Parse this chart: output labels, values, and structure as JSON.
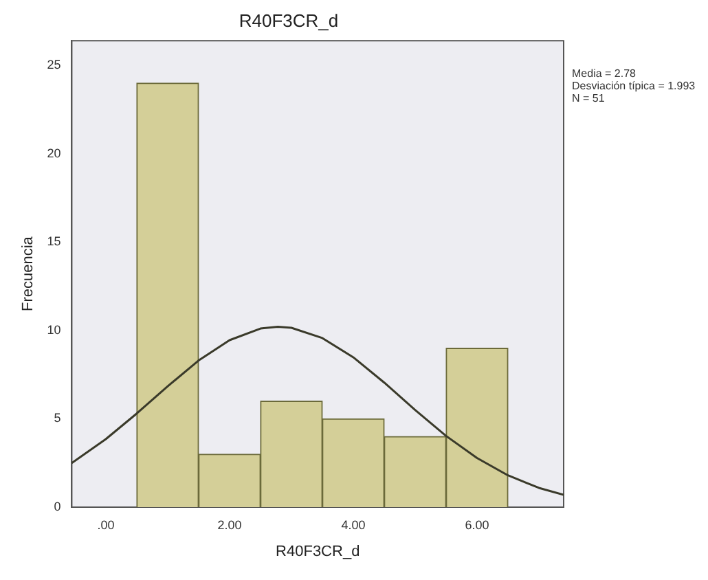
{
  "chart_data": {
    "type": "histogram",
    "title": "R40F3CR_d",
    "xlabel": "R40F3CR_d",
    "ylabel": "Frecuencia",
    "bins": [
      0.5,
      1.5,
      2.5,
      3.5,
      4.5,
      5.5,
      6.5
    ],
    "values": [
      24,
      3,
      6,
      5,
      4,
      9
    ],
    "color": "#d4cf98",
    "series": [
      {
        "type": "line",
        "color": "#3a3a2a",
        "x": [
          -0.55,
          0,
          0.5,
          1,
          1.5,
          2,
          2.5,
          2.78,
          3,
          3.5,
          4,
          4.5,
          5,
          5.5,
          6,
          6.5,
          7,
          7.4
        ],
        "values": [
          2.5,
          3.85,
          5.3,
          6.84,
          8.3,
          9.45,
          10.11,
          10.21,
          10.15,
          9.57,
          8.48,
          7.05,
          5.5,
          4.03,
          2.78,
          1.8,
          1.09,
          0.7
        ]
      }
    ],
    "xlim": [
      -0.55,
      7.4
    ],
    "xticks": [
      {
        "value": 0,
        "label": ".00"
      },
      {
        "value": 2,
        "label": "2.00"
      },
      {
        "value": 4,
        "label": "4.00"
      },
      {
        "value": 6,
        "label": "6.00"
      }
    ],
    "ylim": [
      0,
      26.4
    ],
    "yticks": [
      0,
      5,
      10,
      15,
      20,
      25
    ],
    "annotations": [
      "Media = 2.78",
      "Desviación típica = 1.993",
      "N = 51"
    ],
    "grid": false,
    "legend": false
  }
}
